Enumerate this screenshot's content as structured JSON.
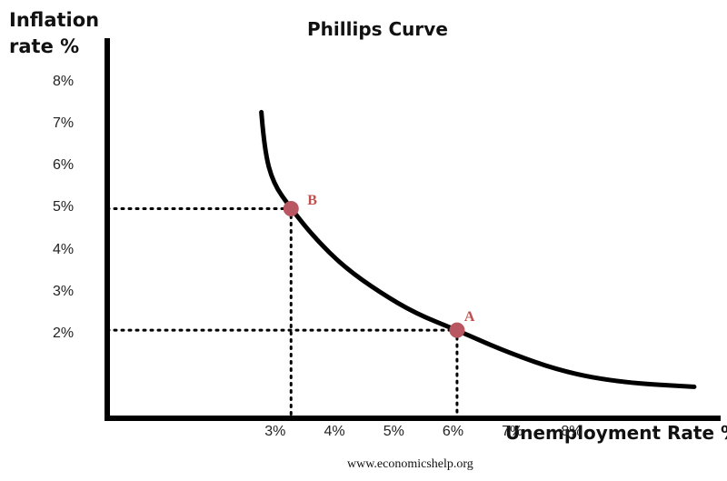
{
  "chart_data": {
    "type": "line",
    "title": "Phillips Curve",
    "xlabel": "Unemployment Rate %",
    "ylabel": "Inflation rate %",
    "x_tick_labels": [
      "3%",
      "4%",
      "5%",
      "6%",
      "7%",
      "8%"
    ],
    "y_tick_labels": [
      "2%",
      "3%",
      "4%",
      "5%",
      "6%",
      "7%",
      "8%"
    ],
    "x_ticks": [
      3,
      4,
      5,
      6,
      7,
      8
    ],
    "y_ticks": [
      2,
      3,
      4,
      5,
      6,
      7,
      8
    ],
    "xlim": [
      0.1,
      10.4
    ],
    "ylim": [
      0,
      9
    ],
    "curve": {
      "x": [
        2.7,
        2.75,
        2.9,
        3.2,
        3.6,
        4.1,
        4.7,
        5.3,
        6.0,
        6.8,
        7.8,
        8.8,
        10.0
      ],
      "y": [
        7.3,
        6.4,
        5.6,
        5.0,
        4.3,
        3.6,
        3.0,
        2.5,
        2.1,
        1.6,
        1.1,
        0.85,
        0.75
      ]
    },
    "points": [
      {
        "label": "B",
        "x": 3.2,
        "y": 5.0
      },
      {
        "label": "A",
        "x": 6.0,
        "y": 2.1
      }
    ],
    "colors": {
      "curve": "#000000",
      "axes": "#000000",
      "point": "#b85661",
      "point_label": "#c0504d"
    }
  },
  "footer": {
    "source": "www.economicshelp.org"
  }
}
